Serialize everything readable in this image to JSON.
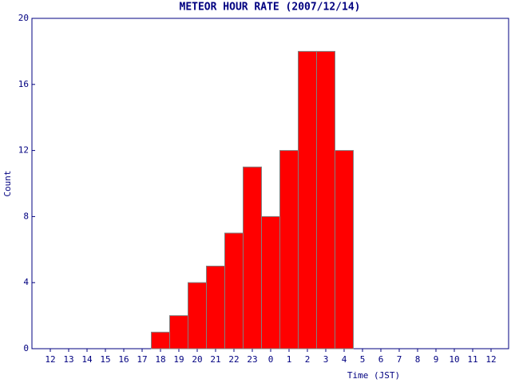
{
  "chart_data": {
    "type": "bar",
    "title": "METEOR HOUR RATE (2007/12/14)",
    "x_label": "Time (JST)",
    "y_label": "Count",
    "categories": [
      "12",
      "13",
      "14",
      "15",
      "16",
      "17",
      "18",
      "19",
      "20",
      "21",
      "22",
      "23",
      "0",
      "1",
      "2",
      "3",
      "4",
      "5",
      "6",
      "7",
      "8",
      "9",
      "10",
      "11",
      "12"
    ],
    "values": [
      0,
      0,
      0,
      0,
      0,
      0,
      1,
      2,
      4,
      5,
      7,
      11,
      8,
      12,
      18,
      18,
      12,
      0,
      0,
      0,
      0,
      0,
      0,
      0,
      0
    ],
    "color": "#ff0000",
    "ylim": [
      0,
      20
    ],
    "yticks": [
      0,
      4,
      8,
      12,
      16,
      20
    ],
    "grid": false
  }
}
